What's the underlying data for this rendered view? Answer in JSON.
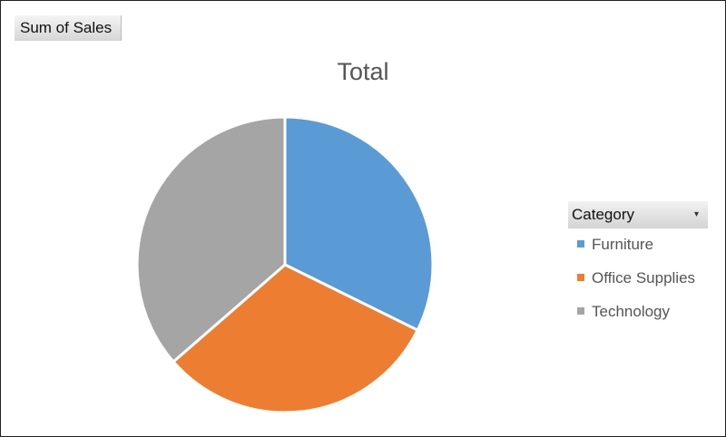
{
  "field_button": {
    "label": "Sum of Sales"
  },
  "chart_data": {
    "type": "pie",
    "title": "Total",
    "legend_title": "Category",
    "legend_placement": "right",
    "categories": [
      "Furniture",
      "Office Supplies",
      "Technology"
    ],
    "values": [
      32.3,
      31.3,
      36.4
    ],
    "value_unit": "percent of total (estimated)",
    "colors": [
      "#5b9bd5",
      "#ed7d31",
      "#a5a5a5"
    ]
  }
}
